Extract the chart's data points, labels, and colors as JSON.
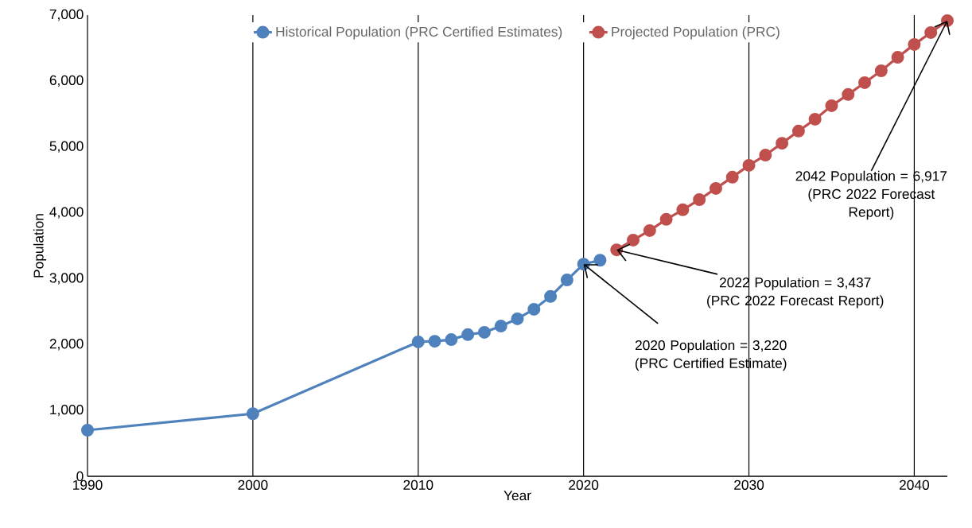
{
  "chart_data": {
    "type": "line",
    "xlabel": "Year",
    "ylabel": "Population",
    "series": [
      {
        "name": "Historical Population (PRC Certified Estimates)",
        "color": "#4f81bd",
        "x": [
          1990,
          2000,
          2010,
          2011,
          2012,
          2013,
          2014,
          2015,
          2016,
          2017,
          2018,
          2019,
          2020,
          2021
        ],
        "values": [
          700,
          950,
          2040,
          2050,
          2075,
          2150,
          2185,
          2280,
          2390,
          2535,
          2730,
          2980,
          3220,
          3280
        ]
      },
      {
        "name": "Projected Population (PRC)",
        "color": "#c0504d",
        "x": [
          2022,
          2023,
          2024,
          2025,
          2026,
          2027,
          2028,
          2029,
          2030,
          2031,
          2032,
          2033,
          2034,
          2035,
          2036,
          2037,
          2038,
          2039,
          2040,
          2041,
          2042
        ],
        "values": [
          3437,
          3585,
          3730,
          3900,
          4045,
          4200,
          4370,
          4540,
          4720,
          4875,
          5055,
          5240,
          5420,
          5625,
          5795,
          5975,
          6155,
          6360,
          6555,
          6735,
          6917
        ]
      }
    ],
    "xlim": [
      1990,
      2042
    ],
    "xticks": [
      1990,
      2000,
      2010,
      2020,
      2030,
      2040
    ],
    "ylim": [
      0,
      7000
    ],
    "yticks": [
      {
        "value": 0,
        "label": "0"
      },
      {
        "value": 1000,
        "label": "1,000"
      },
      {
        "value": 2000,
        "label": "2,000"
      },
      {
        "value": 3000,
        "label": "3,000"
      },
      {
        "value": 4000,
        "label": "4,000"
      },
      {
        "value": 5000,
        "label": "5,000"
      },
      {
        "value": 6000,
        "label": "6,000"
      },
      {
        "value": 7000,
        "label": "7,000"
      }
    ],
    "grid": "x",
    "legend": "top",
    "marker": "circle",
    "line_style": "solid",
    "annotations": [
      {
        "text": "2020 Population = 3,220\n(PRC Certified Estimate)",
        "x": 2020,
        "y": 3220
      },
      {
        "text": "2022 Population = 3,437\n(PRC 2022 Forecast Report)",
        "x": 2022,
        "y": 3437
      },
      {
        "text": "2042 Population = 6,917\n(PRC 2022 Forecast\nReport)",
        "x": 2042,
        "y": 6917
      }
    ]
  }
}
